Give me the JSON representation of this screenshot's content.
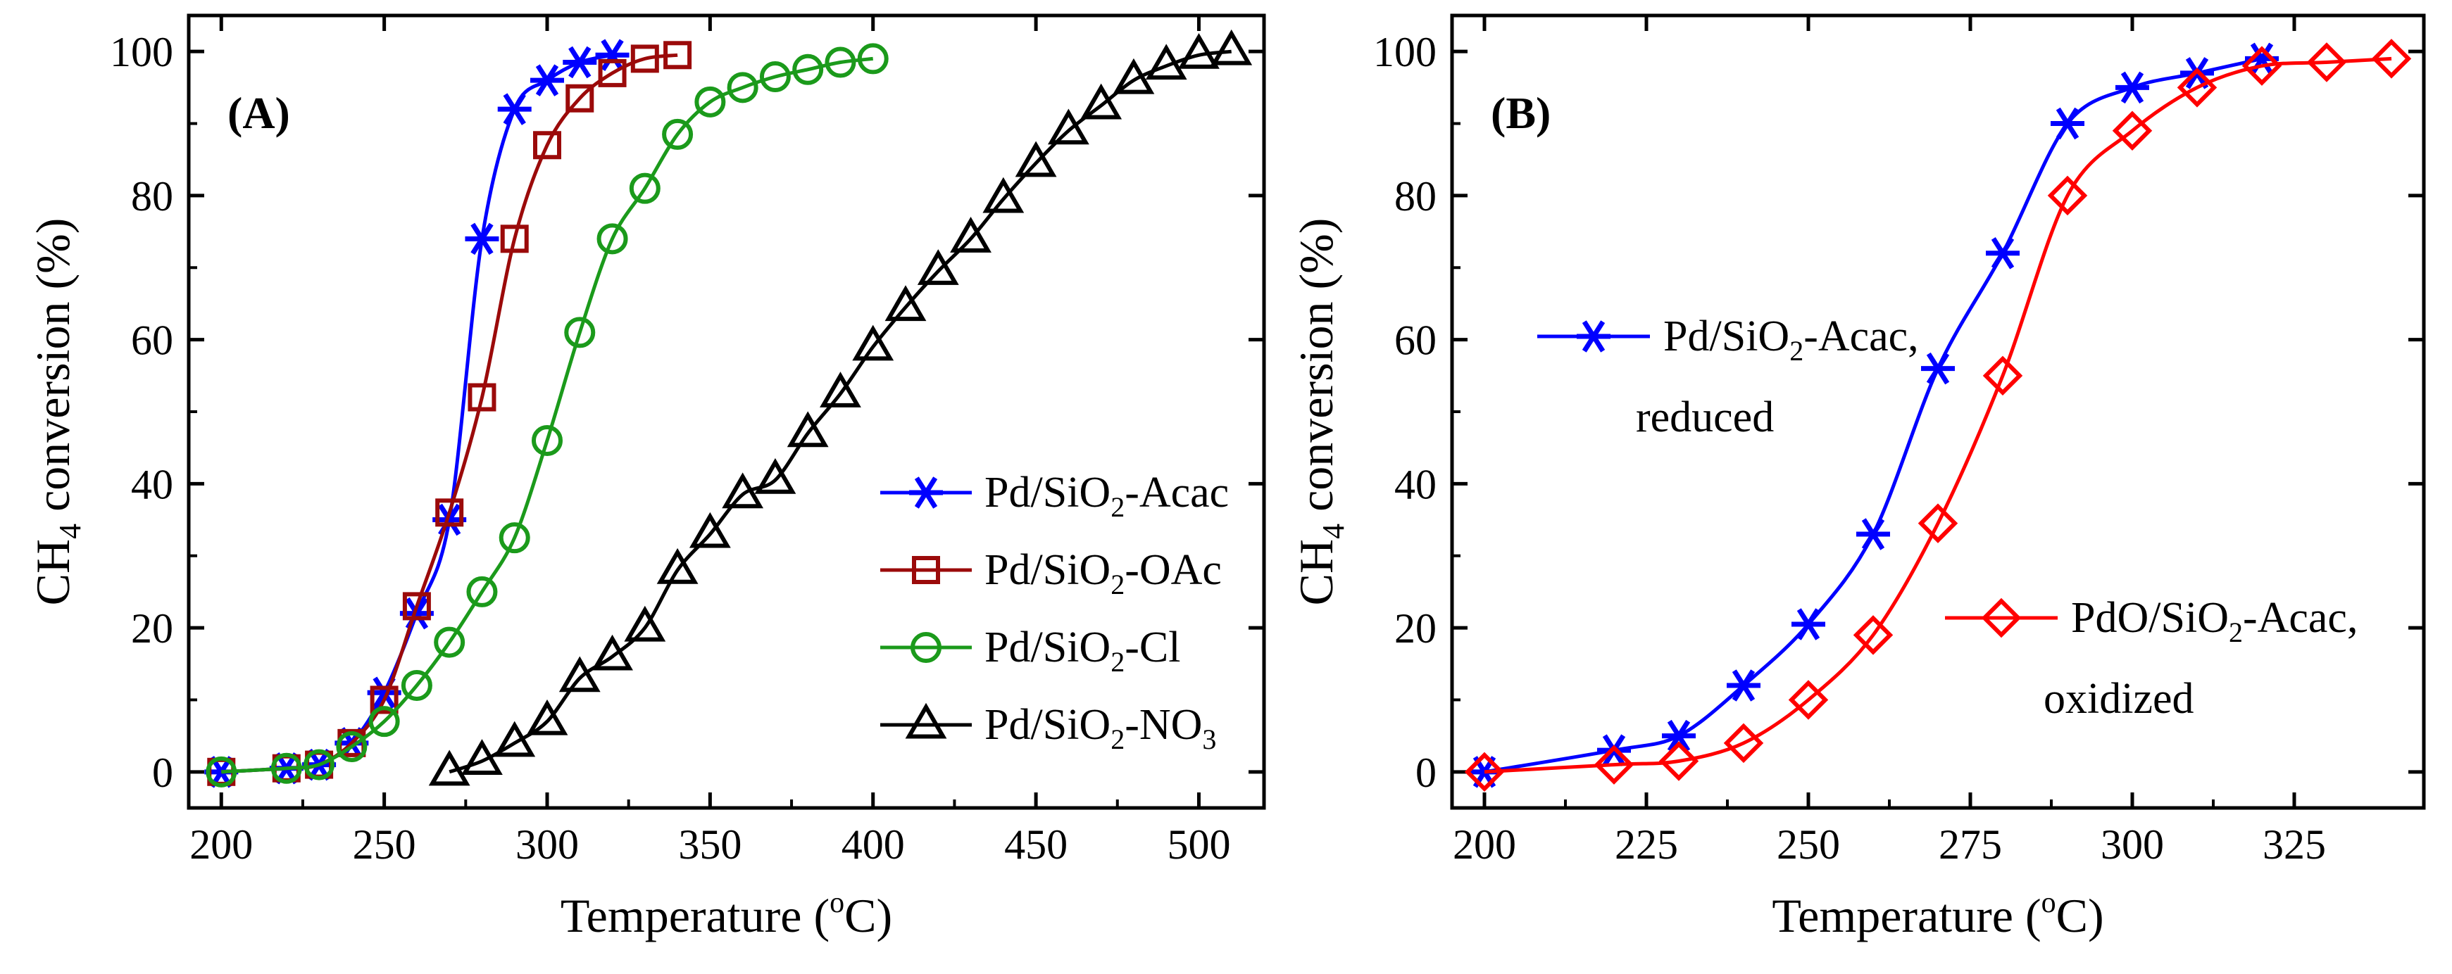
{
  "chart_data": [
    {
      "type": "line",
      "panel_label": "(A)",
      "xlabel": {
        "main": "Temperature (",
        "sup": "o",
        "tail": "C)"
      },
      "ylabel": {
        "pre": "CH",
        "sub": "4",
        "post": " conversion (%)"
      },
      "xlim": [
        190,
        520
      ],
      "ylim": [
        -5,
        105
      ],
      "xticks": [
        200,
        250,
        300,
        350,
        400,
        450,
        500
      ],
      "yticks": [
        0,
        20,
        40,
        60,
        80,
        100
      ],
      "legend_position": "lower-right",
      "series": [
        {
          "name": "Pd/SiO2-Acac",
          "label": {
            "pre": "Pd/SiO",
            "sub": "2",
            "post": "-Acac"
          },
          "color": "#0000ff",
          "marker": "asterisk",
          "x": [
            200,
            220,
            230,
            240,
            250,
            260,
            270,
            280,
            290,
            300,
            310,
            320
          ],
          "y": [
            0,
            0.5,
            1,
            4,
            11,
            22,
            35,
            74,
            92,
            96,
            98.5,
            99.5
          ]
        },
        {
          "name": "Pd/SiO2-OAc",
          "label": {
            "pre": "Pd/SiO",
            "sub": "2",
            "post": "-OAc"
          },
          "color": "#9b0a0a",
          "marker": "square",
          "x": [
            200,
            220,
            230,
            240,
            250,
            260,
            270,
            280,
            290,
            300,
            310,
            320,
            330,
            340
          ],
          "y": [
            0,
            0.5,
            1,
            4,
            10,
            23,
            36,
            52,
            74,
            87,
            93.5,
            97,
            99,
            99.5
          ]
        },
        {
          "name": "Pd/SiO2-Cl",
          "label": {
            "pre": "Pd/SiO",
            "sub": "2",
            "post": "-Cl"
          },
          "color": "#1b9a1b",
          "marker": "circle",
          "x": [
            200,
            220,
            230,
            240,
            250,
            260,
            270,
            280,
            290,
            300,
            310,
            320,
            330,
            340,
            350,
            360,
            370,
            380,
            390,
            400
          ],
          "y": [
            0,
            0.5,
            1,
            3.5,
            7,
            12,
            18,
            25,
            32.5,
            46,
            61,
            74,
            81,
            88.5,
            93,
            95,
            96.5,
            97.5,
            98.5,
            99
          ]
        },
        {
          "name": "Pd/SiO2-NO3",
          "label": {
            "pre": "Pd/SiO",
            "sub": "2",
            "post": "-NO",
            "sub2": "3"
          },
          "color": "#000000",
          "marker": "triangle",
          "x": [
            270,
            280,
            290,
            300,
            310,
            320,
            330,
            340,
            350,
            360,
            370,
            380,
            390,
            400,
            410,
            420,
            430,
            440,
            450,
            460,
            470,
            480,
            490,
            500,
            510
          ],
          "y": [
            0,
            1.5,
            4,
            7,
            13,
            16,
            20,
            28,
            33,
            38.5,
            40.5,
            47,
            52.5,
            59,
            64.5,
            69.5,
            74,
            79.5,
            84.5,
            89,
            92.5,
            96,
            98,
            99.5,
            100
          ]
        }
      ]
    },
    {
      "type": "line",
      "panel_label": "(B)",
      "xlabel": {
        "main": "Temperature (",
        "sup": "o",
        "tail": "C)"
      },
      "ylabel": {
        "pre": "CH",
        "sub": "4",
        "post": " conversion (%)"
      },
      "xlim": [
        195,
        345
      ],
      "ylim": [
        -5,
        105
      ],
      "xticks": [
        200,
        225,
        250,
        275,
        300,
        325
      ],
      "yticks": [
        0,
        20,
        40,
        60,
        80,
        100
      ],
      "legend_position": "inline",
      "series": [
        {
          "name": "Pd/SiO2-Acac, reduced",
          "label": {
            "pre": "Pd/SiO",
            "sub": "2",
            "post": "-Acac,",
            "line2": "reduced"
          },
          "color": "#0000ff",
          "marker": "asterisk",
          "x": [
            200,
            220,
            230,
            240,
            250,
            260,
            270,
            280,
            290,
            300,
            310,
            320
          ],
          "y": [
            0,
            3,
            5,
            12,
            20.5,
            33,
            56,
            72,
            90,
            95,
            97,
            99
          ]
        },
        {
          "name": "PdO/SiO2-Acac, oxidized",
          "label": {
            "pre": "PdO/SiO",
            "sub": "2",
            "post": "-Acac,",
            "line2": "oxidized"
          },
          "color": "#ff0000",
          "marker": "diamond",
          "x": [
            200,
            220,
            230,
            240,
            250,
            260,
            270,
            280,
            290,
            300,
            310,
            320,
            330,
            340
          ],
          "y": [
            0,
            1,
            1.5,
            4,
            10,
            19,
            34.5,
            55,
            80,
            89,
            95,
            98,
            98.5,
            99
          ]
        }
      ]
    }
  ]
}
